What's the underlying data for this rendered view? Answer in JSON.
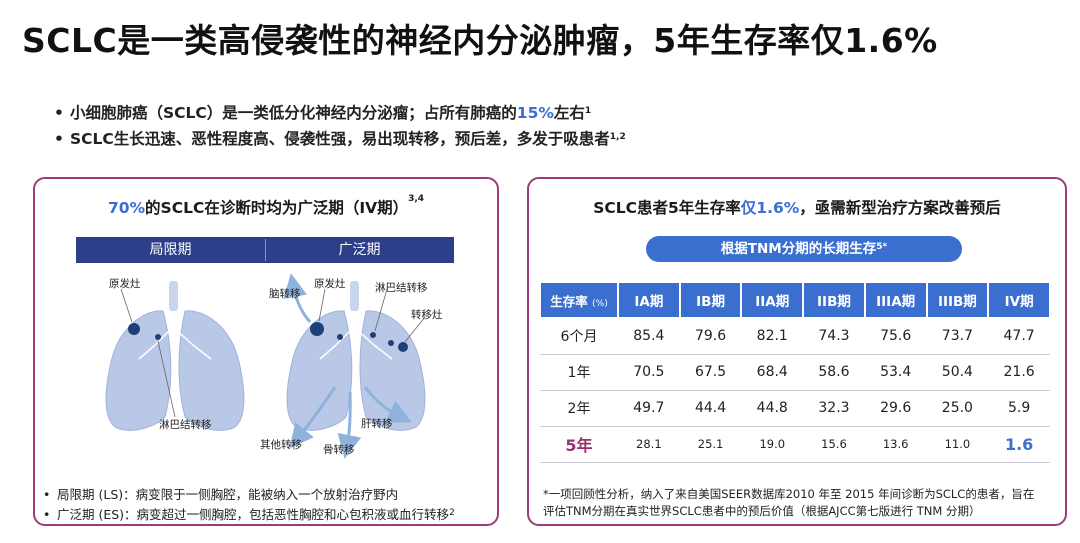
{
  "title": "SCLC是一类高侵袭性的神经内分泌肿瘤，5年生存率仅1.6%",
  "bullets": [
    {
      "pre": "小细胞肺癌（SCLC）是一类低分化神经内分泌瘤；占所有肺癌的",
      "hl": "15%",
      "post": "左右",
      "sup": "1"
    },
    {
      "pre": "SCLC生长迅速、恶性程度高、侵袭性强，易出现转移，预后差，多发于吸患者",
      "hl": "",
      "post": "",
      "sup": "1,2"
    }
  ],
  "left_panel": {
    "heading_hl": "70%",
    "heading_rest": "的SCLC在诊断时均为广泛期（IV期）",
    "heading_sup": "3,4",
    "stages": {
      "limited": "局限期",
      "extensive": "广泛期"
    },
    "labels": {
      "primary_left": "原发灶",
      "lymph_left": "淋巴结转移",
      "brain": "脑转移",
      "primary_right": "原发灶",
      "lymph_right": "淋巴结转移",
      "metastasis": "转移灶",
      "liver": "肝转移",
      "other": "其他转移",
      "bone": "骨转移"
    },
    "notes": [
      "局限期 (LS)：病变限于一侧胸腔，能被纳入一个放射治疗野内",
      "广泛期 (ES)：病变超过一侧胸腔，包括恶性胸腔和心包积液或血行转移"
    ],
    "notes_sup": "2",
    "colors": {
      "lung": "#b8c8e6",
      "tumor": "#1f3f7a",
      "arrow": "#8fb2dc"
    }
  },
  "right_panel": {
    "heading_pre": "SCLC患者5年生存率",
    "heading_hl": "仅1.6%",
    "heading_post": "，亟需新型治疗方案改善预后",
    "pill": "根据TNM分期的长期生存",
    "pill_sup": "5*",
    "table": {
      "corner": "生存率",
      "corner_unit": "(%)",
      "headers": [
        "IA期",
        "IB期",
        "IIA期",
        "IIB期",
        "IIIA期",
        "IIIB期",
        "IV期"
      ],
      "rows": [
        {
          "label": "6个月",
          "values": [
            "85.4",
            "79.6",
            "82.1",
            "74.3",
            "75.6",
            "73.7",
            "47.7"
          ]
        },
        {
          "label": "1年",
          "values": [
            "70.5",
            "67.5",
            "68.4",
            "58.6",
            "53.4",
            "50.4",
            "21.6"
          ]
        },
        {
          "label": "2年",
          "values": [
            "49.7",
            "44.4",
            "44.8",
            "32.3",
            "29.6",
            "25.0",
            "5.9"
          ]
        },
        {
          "label": "5年",
          "values": [
            "28.1",
            "25.1",
            "19.0",
            "15.6",
            "13.6",
            "11.0",
            "1.6"
          ]
        }
      ]
    },
    "footnote_1": "*一项回顾性分析，纳入了来自美国SEER数据库2010 年至 2015 年间诊断为SCLC的患者，旨在",
    "footnote_2": "评估TNM分期在真实世界SCLC患者中的预后价值（根据AJCC第七版进行 TNM 分期）"
  },
  "accent_colors": {
    "blue": "#3a6fd0",
    "navy": "#2e3f8a",
    "magenta": "#9b2f6f"
  }
}
